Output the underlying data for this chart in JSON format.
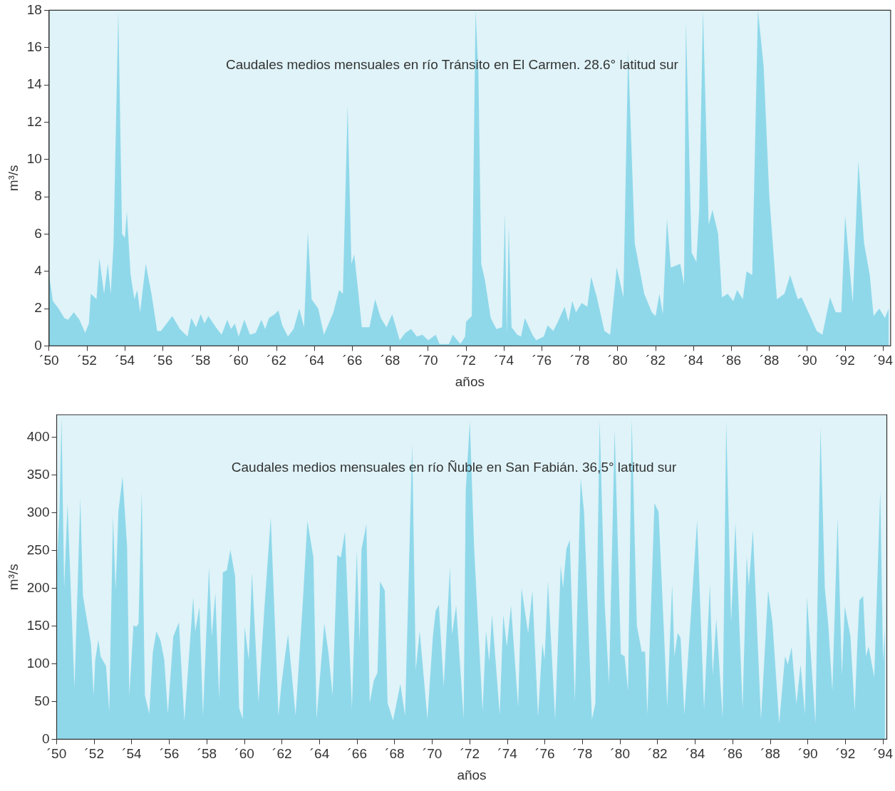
{
  "chart_data": [
    {
      "type": "area",
      "title": "Caudales medios mensuales en río Tránsito en El Carmen. 28.6° latitud sur",
      "xlabel": "años",
      "ylabel": "m³/s",
      "x": [
        50.0,
        50.2,
        50.5,
        50.8,
        51.0,
        51.3,
        51.6,
        51.9,
        52.1,
        52.2,
        52.5,
        52.65,
        52.9,
        53.1,
        53.25,
        53.4,
        53.65,
        53.85,
        54.0,
        54.1,
        54.3,
        54.5,
        54.65,
        54.8,
        55.1,
        55.4,
        55.7,
        55.9,
        56.2,
        56.5,
        56.9,
        57.3,
        57.5,
        57.75,
        58.0,
        58.2,
        58.4,
        58.8,
        59.1,
        59.4,
        59.6,
        59.8,
        60.0,
        60.3,
        60.6,
        60.9,
        61.2,
        61.4,
        61.6,
        61.9,
        62.1,
        62.3,
        62.6,
        62.9,
        63.2,
        63.45,
        63.65,
        63.85,
        64.2,
        64.5,
        65.0,
        65.3,
        65.5,
        65.75,
        65.95,
        66.1,
        66.3,
        66.5,
        66.9,
        67.2,
        67.5,
        67.8,
        68.1,
        68.3,
        68.5,
        68.8,
        69.1,
        69.4,
        69.7,
        70.0,
        70.4,
        70.6,
        71.1,
        71.3,
        71.7,
        71.95,
        72.0,
        72.3,
        72.5,
        72.65,
        72.8,
        73.0,
        73.3,
        73.6,
        73.9,
        74.05,
        74.15,
        74.25,
        74.4,
        74.7,
        74.9,
        75.1,
        75.5,
        75.7,
        76.1,
        76.3,
        76.6,
        76.8,
        77.2,
        77.4,
        77.6,
        77.8,
        78.1,
        78.4,
        78.6,
        78.9,
        79.3,
        79.6,
        79.95,
        80.3,
        80.55,
        80.9,
        81.4,
        81.8,
        82.0,
        82.2,
        82.38,
        82.6,
        82.8,
        83.3,
        83.5,
        83.6,
        83.9,
        84.15,
        84.3,
        84.5,
        84.8,
        85.0,
        85.3,
        85.5,
        85.8,
        86.1,
        86.3,
        86.6,
        86.8,
        87.1,
        87.4,
        87.7,
        88.0,
        88.4,
        88.8,
        89.1,
        89.5,
        89.7,
        90.2,
        90.5,
        90.8,
        91.2,
        91.5,
        91.8,
        92.0,
        92.4,
        92.7,
        93.0,
        93.3,
        93.5,
        93.8,
        94.1,
        94.3
      ],
      "series": [
        {
          "color": "#8fd8ea",
          "values": [
            3.8,
            2.4,
            2.0,
            1.5,
            1.4,
            1.8,
            1.4,
            0.7,
            1.2,
            2.8,
            2.5,
            4.7,
            2.8,
            4.4,
            2.8,
            5.5,
            18,
            6.0,
            5.8,
            7.2,
            3.8,
            2.5,
            3.0,
            1.8,
            4.4,
            2.8,
            0.8,
            0.8,
            1.2,
            1.6,
            0.9,
            0.5,
            1.5,
            1.0,
            1.7,
            1.2,
            1.6,
            1.0,
            0.6,
            1.4,
            0.9,
            1.2,
            0.5,
            1.4,
            0.6,
            0.7,
            1.4,
            0.9,
            1.5,
            1.7,
            1.9,
            1.1,
            0.5,
            0.9,
            2.0,
            1.0,
            6.1,
            2.5,
            2.0,
            0.6,
            1.8,
            3.0,
            2.8,
            12.9,
            4.4,
            4.9,
            3.0,
            1.0,
            1.0,
            2.5,
            1.5,
            1.0,
            1.7,
            1.0,
            0.3,
            0.7,
            0.9,
            0.5,
            0.6,
            0.3,
            0.6,
            0.1,
            0.1,
            0.6,
            0.1,
            0.5,
            1.3,
            1.6,
            18,
            14.6,
            4.4,
            3.5,
            1.5,
            0.9,
            1.0,
            7.1,
            0.6,
            6.4,
            1.0,
            0.6,
            0.5,
            1.5,
            0.6,
            0.3,
            0.5,
            1.1,
            0.8,
            1.2,
            2.1,
            1.3,
            2.4,
            1.8,
            2.3,
            2.1,
            3.7,
            2.6,
            0.8,
            0.6,
            4.2,
            2.6,
            15.8,
            5.5,
            2.8,
            1.8,
            1.6,
            2.8,
            1.7,
            6.8,
            4.2,
            4.4,
            3.3,
            17.4,
            5.0,
            4.5,
            7.3,
            18,
            6.5,
            7.3,
            6.0,
            2.6,
            2.8,
            2.4,
            3.0,
            2.5,
            4.0,
            3.8,
            18,
            15.0,
            8.0,
            2.5,
            2.8,
            3.8,
            2.5,
            2.6,
            1.5,
            0.8,
            0.6,
            2.6,
            1.8,
            1.8,
            7.0,
            2.3,
            9.9,
            5.5,
            3.8,
            1.6,
            2.0,
            1.5,
            2.0
          ]
        }
      ],
      "xlim": [
        50,
        94.4
      ],
      "xticks": [
        {
          "value": 50,
          "label": "´50"
        },
        {
          "value": 52,
          "label": "´52"
        },
        {
          "value": 54,
          "label": "´54"
        },
        {
          "value": 56,
          "label": "´56"
        },
        {
          "value": 58,
          "label": "´58"
        },
        {
          "value": 60,
          "label": "´60"
        },
        {
          "value": 62,
          "label": "´62"
        },
        {
          "value": 64,
          "label": "´64"
        },
        {
          "value": 66,
          "label": "´66"
        },
        {
          "value": 68,
          "label": "´68"
        },
        {
          "value": 70,
          "label": "´70"
        },
        {
          "value": 72,
          "label": "´72"
        },
        {
          "value": 74,
          "label": "´74"
        },
        {
          "value": 76,
          "label": "´76"
        },
        {
          "value": 78,
          "label": "´78"
        },
        {
          "value": 80,
          "label": "´80"
        },
        {
          "value": 82,
          "label": "´82"
        },
        {
          "value": 84,
          "label": "´84"
        },
        {
          "value": 86,
          "label": "´86"
        },
        {
          "value": 88,
          "label": "´88"
        },
        {
          "value": 90,
          "label": "´90"
        },
        {
          "value": 92,
          "label": "´92"
        },
        {
          "value": 94,
          "label": "´94"
        }
      ],
      "ylim": [
        0,
        18
      ],
      "yticks": [
        0,
        2,
        4,
        6,
        8,
        10,
        12,
        14,
        16,
        18
      ]
    },
    {
      "type": "area",
      "title": "Caudales medios mensuales en río Ñuble en San Fabián. 36,5° latitud sur",
      "xlabel": "años",
      "ylabel": "m³/s",
      "x": [
        50.0,
        50.15,
        50.26,
        50.4,
        50.58,
        50.95,
        51.26,
        51.4,
        51.83,
        51.97,
        52.05,
        52.22,
        52.34,
        52.63,
        52.8,
        53.0,
        53.14,
        53.29,
        53.51,
        53.75,
        53.87,
        54.09,
        54.24,
        54.36,
        54.53,
        54.7,
        54.93,
        55.12,
        55.31,
        55.53,
        55.73,
        55.92,
        56.21,
        56.51,
        56.8,
        57.27,
        57.38,
        57.6,
        57.79,
        58.11,
        58.26,
        58.45,
        58.65,
        58.85,
        59.06,
        59.25,
        59.5,
        59.72,
        59.91,
        60.01,
        60.23,
        60.4,
        60.75,
        61.04,
        61.4,
        61.81,
        61.96,
        62.13,
        62.32,
        62.72,
        63.11,
        63.35,
        63.67,
        63.84,
        64.25,
        64.47,
        64.69,
        64.94,
        65.13,
        65.35,
        65.72,
        65.98,
        66.13,
        66.23,
        66.49,
        66.67,
        66.89,
        67.08,
        67.22,
        67.47,
        67.62,
        67.91,
        68.3,
        68.55,
        68.93,
        69.12,
        69.33,
        69.74,
        70.03,
        70.18,
        70.35,
        70.61,
        70.94,
        71.05,
        71.27,
        71.67,
        71.78,
        72.0,
        72.23,
        72.68,
        72.86,
        73.03,
        73.18,
        73.59,
        73.78,
        73.97,
        74.19,
        74.57,
        74.75,
        75.1,
        75.33,
        75.63,
        75.86,
        75.98,
        76.16,
        76.54,
        76.84,
        76.96,
        77.14,
        77.32,
        77.59,
        77.9,
        78.08,
        78.5,
        78.68,
        78.91,
        79.18,
        79.41,
        79.71,
        80.04,
        80.24,
        80.42,
        80.62,
        80.89,
        81.15,
        81.33,
        81.45,
        81.83,
        82.05,
        82.51,
        82.77,
        82.89,
        83.07,
        83.22,
        83.42,
        84.1,
        84.47,
        84.78,
        84.93,
        85.12,
        85.46,
        85.65,
        85.91,
        86.14,
        86.52,
        86.74,
        86.85,
        87.07,
        87.5,
        87.88,
        88.11,
        88.47,
        88.78,
        88.93,
        89.13,
        89.39,
        89.61,
        89.84,
        89.95,
        90.4,
        90.67,
        90.9,
        91.08,
        91.3,
        91.58,
        91.81,
        91.96,
        92.26,
        92.49,
        92.64,
        92.74,
        92.94,
        93.09,
        93.23,
        93.53,
        93.85,
        94.0,
        94.1
      ],
      "series": [
        {
          "color": "#8fd8ea",
          "values": [
            220,
            302,
            426,
            200,
            312,
            68,
            319,
            190,
            126,
            58,
            104,
            132,
            110,
            97,
            37,
            295,
            197,
            302,
            348,
            255,
            58,
            151,
            149,
            153,
            328,
            58,
            34,
            115,
            143,
            131,
            105,
            34,
            136,
            155,
            24,
            188,
            143,
            175,
            31,
            228,
            136,
            194,
            54,
            221,
            224,
            251,
            216,
            41,
            27,
            149,
            105,
            221,
            49,
            166,
            294,
            31,
            71,
            105,
            139,
            32,
            183,
            289,
            241,
            27,
            153,
            115,
            58,
            244,
            241,
            275,
            41,
            250,
            126,
            251,
            285,
            48,
            78,
            88,
            209,
            197,
            48,
            25,
            73,
            31,
            392,
            92,
            143,
            27,
            136,
            170,
            178,
            70,
            228,
            139,
            177,
            27,
            329,
            421,
            252,
            37,
            144,
            103,
            165,
            33,
            165,
            123,
            177,
            43,
            200,
            141,
            197,
            30,
            127,
            106,
            209,
            26,
            230,
            200,
            252,
            264,
            50,
            346,
            301,
            26,
            47,
            423,
            179,
            73,
            410,
            113,
            110,
            64,
            424,
            151,
            116,
            116,
            33,
            313,
            301,
            43,
            205,
            110,
            141,
            134,
            33,
            290,
            40,
            205,
            85,
            160,
            28,
            421,
            155,
            287,
            40,
            243,
            203,
            277,
            26,
            197,
            155,
            21,
            110,
            99,
            122,
            47,
            99,
            33,
            188,
            21,
            414,
            200,
            153,
            64,
            294,
            85,
            176,
            137,
            37,
            132,
            184,
            190,
            110,
            123,
            82,
            329,
            103,
            148
          ]
        }
      ],
      "xlim": [
        50,
        94.2
      ],
      "xticks": [
        {
          "value": 50,
          "label": "´50"
        },
        {
          "value": 52,
          "label": "´52"
        },
        {
          "value": 54,
          "label": "´54"
        },
        {
          "value": 56,
          "label": "´56"
        },
        {
          "value": 58,
          "label": "´58"
        },
        {
          "value": 60,
          "label": "´60"
        },
        {
          "value": 62,
          "label": "´62"
        },
        {
          "value": 64,
          "label": "´64"
        },
        {
          "value": 66,
          "label": "´66"
        },
        {
          "value": 68,
          "label": "´68"
        },
        {
          "value": 70,
          "label": "´70"
        },
        {
          "value": 72,
          "label": "´72"
        },
        {
          "value": 74,
          "label": "´74"
        },
        {
          "value": 76,
          "label": "´76"
        },
        {
          "value": 78,
          "label": "´78"
        },
        {
          "value": 80,
          "label": "´80"
        },
        {
          "value": 82,
          "label": "´82"
        },
        {
          "value": 84,
          "label": "´84"
        },
        {
          "value": 86,
          "label": "´86"
        },
        {
          "value": 88,
          "label": "´88"
        },
        {
          "value": 90,
          "label": "´90"
        },
        {
          "value": 92,
          "label": "´92"
        },
        {
          "value": 94,
          "label": "´94"
        }
      ],
      "ylim": [
        0,
        430
      ],
      "yticks": [
        0,
        50,
        100,
        150,
        200,
        250,
        300,
        350,
        400
      ]
    }
  ]
}
